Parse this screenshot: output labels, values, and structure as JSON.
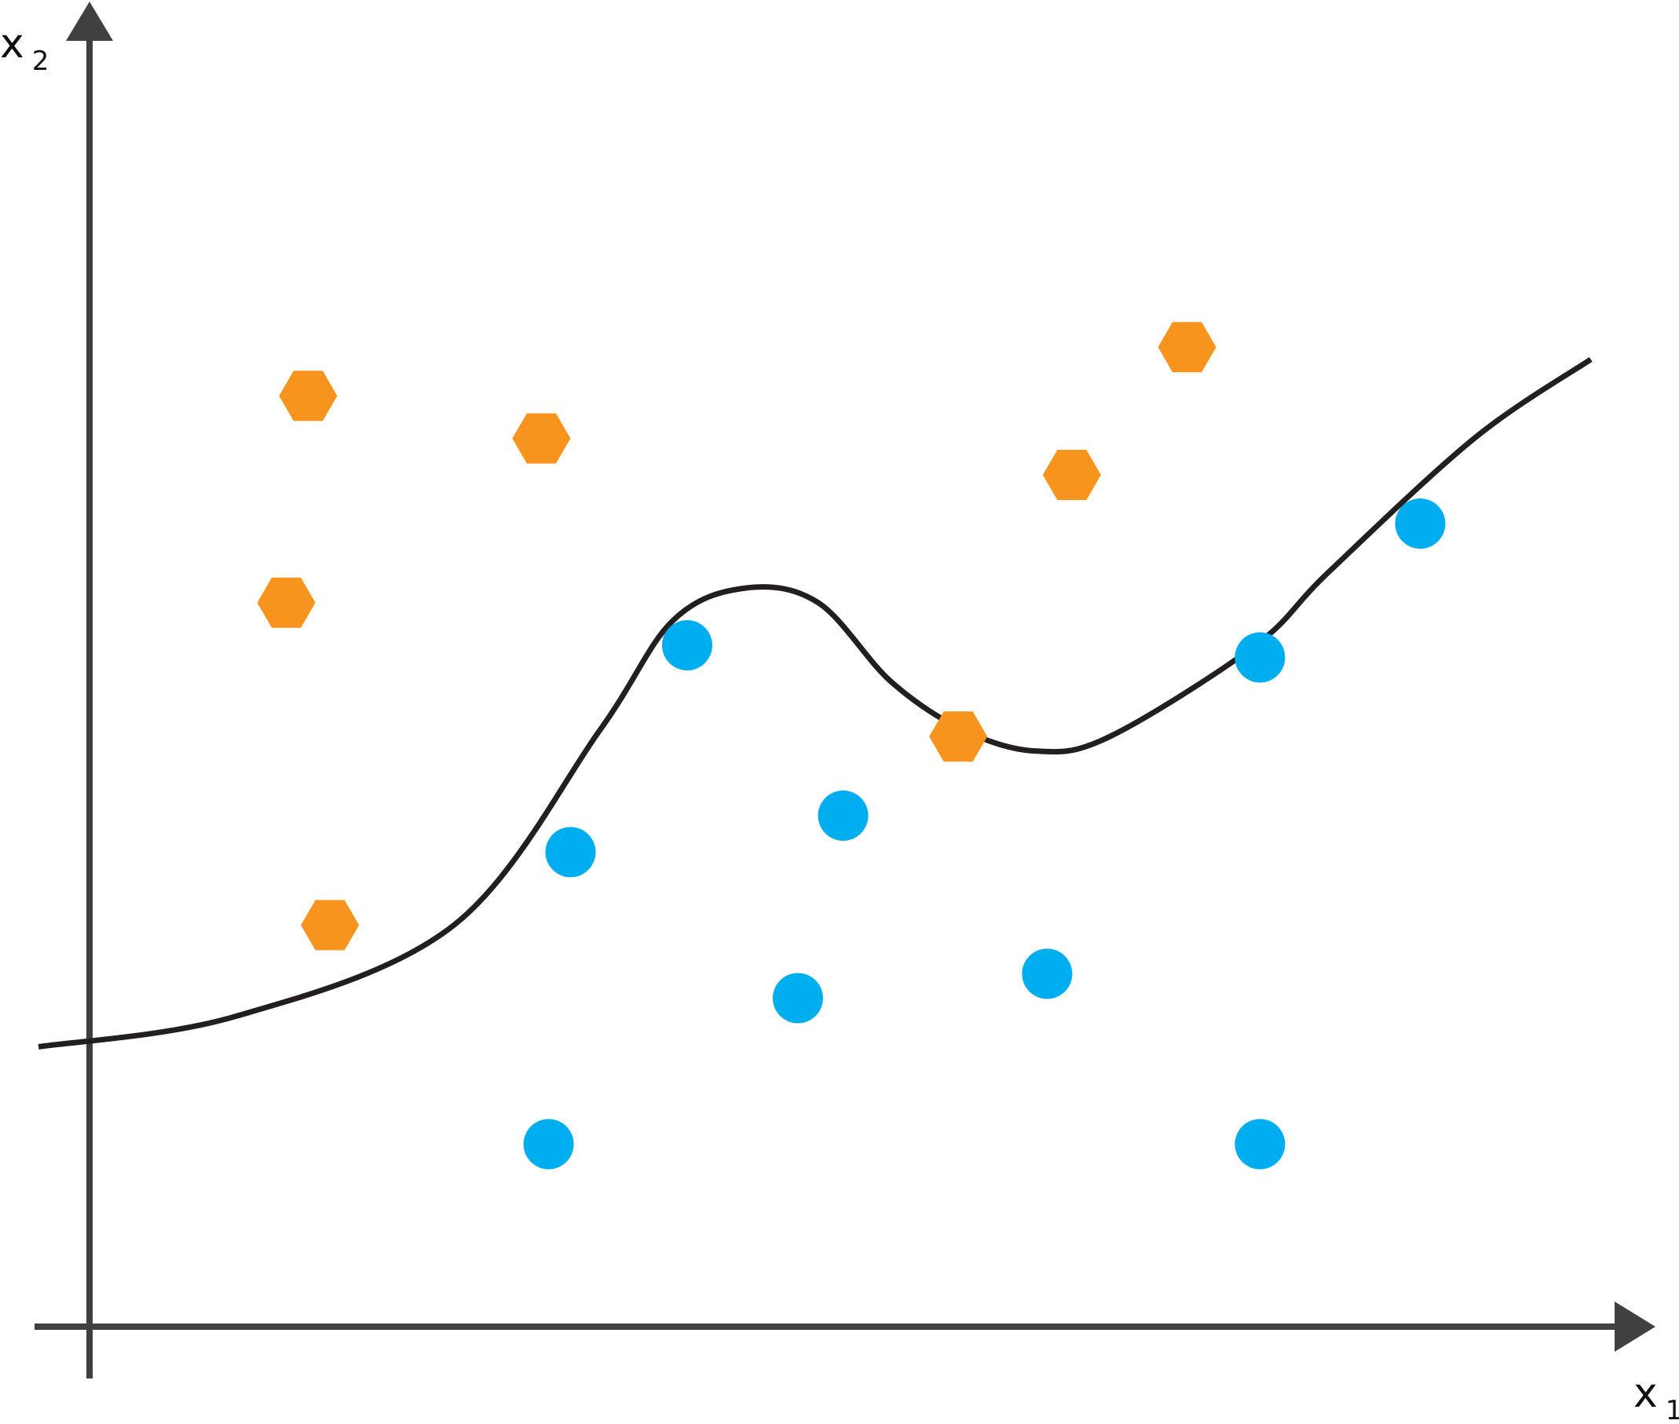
{
  "chart_data": {
    "type": "scatter",
    "title": "",
    "xlabel": "x",
    "xlabel_sub": "1",
    "ylabel": "x",
    "ylabel_sub": "2",
    "xlim": [
      0,
      10
    ],
    "ylim": [
      0,
      10
    ],
    "grid": false,
    "legend": "none",
    "colors": {
      "axis": "#404040",
      "boundary": "#231f20",
      "class_a": "#f7941d",
      "class_b": "#00aeef"
    },
    "series": [
      {
        "marker": "hexagon",
        "color": "#f7941d",
        "points": [
          {
            "x": 1.5,
            "y": 7.65
          },
          {
            "x": 3.1,
            "y": 7.3
          },
          {
            "x": 1.35,
            "y": 5.95
          },
          {
            "x": 1.65,
            "y": 3.3
          },
          {
            "x": 5.96,
            "y": 4.85
          },
          {
            "x": 6.74,
            "y": 7.0
          },
          {
            "x": 7.53,
            "y": 8.05
          }
        ]
      },
      {
        "marker": "circle",
        "color": "#00aeef",
        "points": [
          {
            "x": 3.3,
            "y": 3.9
          },
          {
            "x": 4.1,
            "y": 5.6
          },
          {
            "x": 5.17,
            "y": 4.2
          },
          {
            "x": 4.86,
            "y": 2.7
          },
          {
            "x": 6.57,
            "y": 2.9
          },
          {
            "x": 3.15,
            "y": 1.5
          },
          {
            "x": 8.03,
            "y": 5.5
          },
          {
            "x": 9.13,
            "y": 6.6
          },
          {
            "x": 8.03,
            "y": 1.5
          }
        ]
      }
    ],
    "boundary": [
      {
        "x": -0.35,
        "y": 2.3
      },
      {
        "x": 1.0,
        "y": 2.55
      },
      {
        "x": 2.5,
        "y": 3.3
      },
      {
        "x": 3.5,
        "y": 4.9
      },
      {
        "x": 4.0,
        "y": 5.8
      },
      {
        "x": 4.5,
        "y": 6.07
      },
      {
        "x": 5.0,
        "y": 5.95
      },
      {
        "x": 5.5,
        "y": 5.3
      },
      {
        "x": 6.0,
        "y": 4.9
      },
      {
        "x": 6.5,
        "y": 4.73
      },
      {
        "x": 7.0,
        "y": 4.85
      },
      {
        "x": 8.0,
        "y": 5.6
      },
      {
        "x": 8.5,
        "y": 6.2
      },
      {
        "x": 9.5,
        "y": 7.3
      },
      {
        "x": 10.3,
        "y": 7.95
      }
    ]
  }
}
